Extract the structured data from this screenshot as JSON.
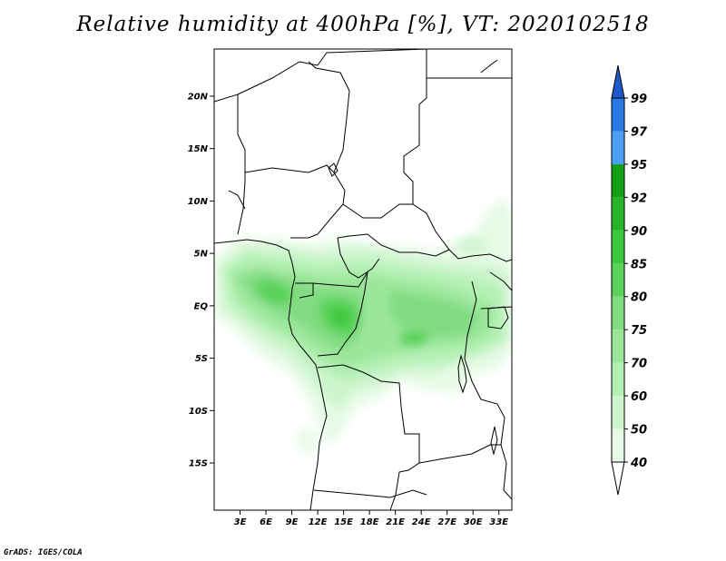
{
  "title": "Relative humidity at 400hPa [%], VT: 2020102518",
  "credit": "GrADS: IGES/COLA",
  "map": {
    "region": "Central Africa",
    "variable": "Relative humidity",
    "level": "400hPa",
    "units": "%",
    "valid_time": "2020102518",
    "lon_range": [
      0,
      34.5
    ],
    "lat_range": [
      -19.5,
      24.5
    ],
    "lon_ticks": [
      {
        "value": 3,
        "label": "3E"
      },
      {
        "value": 6,
        "label": "6E"
      },
      {
        "value": 9,
        "label": "9E"
      },
      {
        "value": 12,
        "label": "12E"
      },
      {
        "value": 15,
        "label": "15E"
      },
      {
        "value": 18,
        "label": "18E"
      },
      {
        "value": 21,
        "label": "21E"
      },
      {
        "value": 24,
        "label": "24E"
      },
      {
        "value": 27,
        "label": "27E"
      },
      {
        "value": 30,
        "label": "30E"
      },
      {
        "value": 33,
        "label": "33E"
      }
    ],
    "lat_ticks": [
      {
        "value": 20,
        "label": "20N"
      },
      {
        "value": 15,
        "label": "15N"
      },
      {
        "value": 10,
        "label": "10N"
      },
      {
        "value": 5,
        "label": "5N"
      },
      {
        "value": 0,
        "label": "EQ"
      },
      {
        "value": -5,
        "label": "5S"
      },
      {
        "value": -10,
        "label": "10S"
      },
      {
        "value": -15,
        "label": "15S"
      }
    ]
  },
  "colorbar": {
    "levels": [
      40,
      50,
      60,
      70,
      75,
      80,
      85,
      90,
      92,
      95,
      97,
      99
    ],
    "colors": [
      "#ffffff",
      "#e6fae6",
      "#cdf5cd",
      "#b4f0b4",
      "#9be69b",
      "#82dc82",
      "#5ad25a",
      "#3cc83c",
      "#28b428",
      "#14a014",
      "#4ba0f5",
      "#2878e6",
      "#1e5acd"
    ]
  }
}
